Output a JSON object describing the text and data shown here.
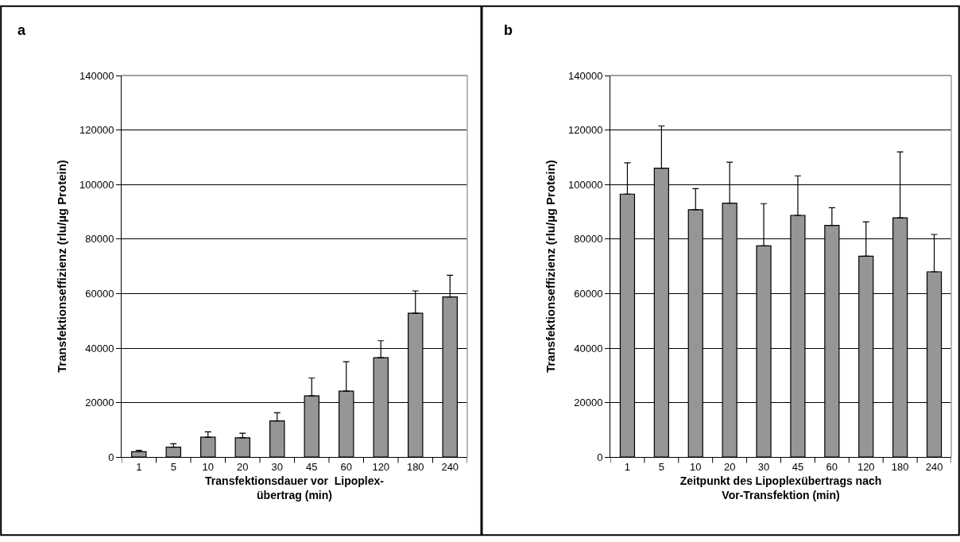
{
  "chart_data": [
    {
      "type": "bar",
      "title": "a",
      "ylabel": "Transfektionseffizienz (rlu/µg Protein)",
      "xlabel": "Transfektionsdauer vor  Lipoplex-\nübertrag (min)",
      "categories": [
        "1",
        "5",
        "10",
        "20",
        "30",
        "45",
        "60",
        "120",
        "180",
        "240"
      ],
      "values": [
        2000,
        3700,
        7300,
        7100,
        13300,
        22500,
        24200,
        36500,
        52800,
        58800
      ],
      "errors": [
        [
          2000,
          2500
        ],
        [
          3700,
          4900
        ],
        [
          7300,
          9300
        ],
        [
          7100,
          8800
        ],
        [
          13300,
          16300
        ],
        [
          22500,
          29000
        ],
        [
          24200,
          35000
        ],
        [
          36500,
          42700
        ],
        [
          52800,
          61000
        ],
        [
          58800,
          66700
        ]
      ],
      "color": "#969696",
      "ylim": [
        0,
        140000
      ],
      "yticks": [
        0,
        20000,
        40000,
        60000,
        80000,
        100000,
        120000,
        140000
      ],
      "grid": "y"
    },
    {
      "type": "bar",
      "title": "b",
      "ylabel": "Transfektionseffizienz (rlu/µg Protein)",
      "xlabel": "Zeitpunkt des Lipoplexübertrags nach\nVor-Transfektion (min)",
      "categories": [
        "1",
        "5",
        "10",
        "20",
        "30",
        "45",
        "60",
        "120",
        "180",
        "240"
      ],
      "values": [
        96500,
        106000,
        90800,
        93200,
        77500,
        88700,
        85000,
        73700,
        87800,
        68000
      ],
      "errors": [
        [
          96500,
          108000
        ],
        [
          106000,
          121500
        ],
        [
          90800,
          98500
        ],
        [
          93200,
          108200
        ],
        [
          77500,
          93000
        ],
        [
          88700,
          103200
        ],
        [
          85000,
          91500
        ],
        [
          73700,
          86300
        ],
        [
          87800,
          112000
        ],
        [
          68000,
          81700
        ]
      ],
      "color": "#969696",
      "ylim": [
        0,
        140000
      ],
      "yticks": [
        0,
        20000,
        40000,
        60000,
        80000,
        100000,
        120000,
        140000
      ],
      "grid": "y"
    }
  ]
}
